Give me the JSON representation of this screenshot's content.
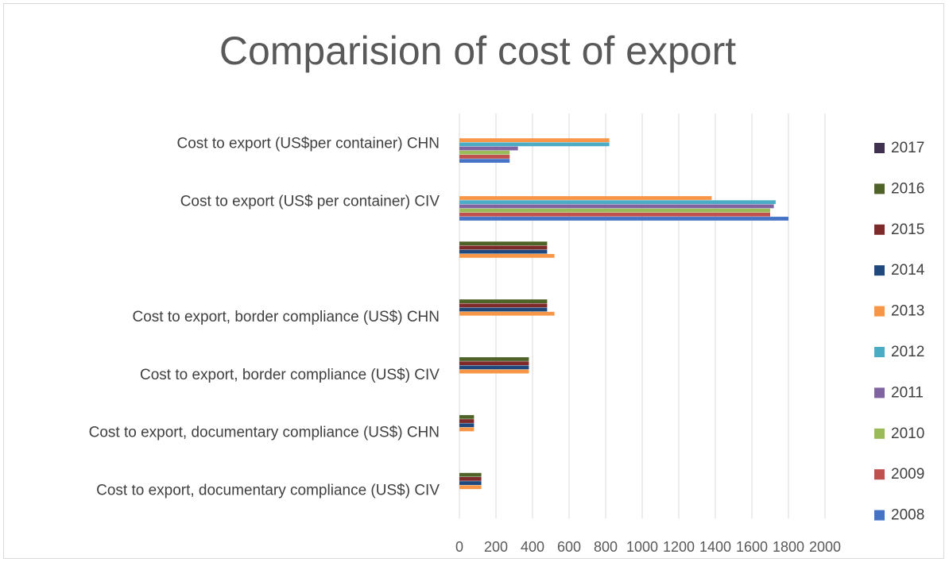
{
  "chart_data": {
    "type": "bar",
    "orientation": "horizontal",
    "title": "Comparision of cost of export",
    "xlabel": "",
    "ylabel": "",
    "xlim": [
      0,
      2000
    ],
    "x_ticks": [
      0,
      200,
      400,
      600,
      800,
      1000,
      1200,
      1400,
      1600,
      1800,
      2000
    ],
    "grid": "vertical",
    "legend_position": "right",
    "categories": [
      "Cost to export (US$per container) CHN",
      "Cost to export (US$ per container) CIV",
      "",
      "Cost to export, border compliance (US$) CHN",
      "Cost to export, border compliance (US$) CIV",
      "Cost to export, documentary compliance (US$) CHN",
      "Cost to export, documentary compliance (US$) CIV"
    ],
    "series": [
      {
        "name": "2008",
        "color": "#4472C4",
        "values": [
          275,
          1800,
          null,
          null,
          null,
          null,
          null
        ]
      },
      {
        "name": "2009",
        "color": "#C0504D",
        "values": [
          275,
          1700,
          null,
          null,
          null,
          null,
          null
        ]
      },
      {
        "name": "2010",
        "color": "#9BBB59",
        "values": [
          275,
          1700,
          null,
          null,
          null,
          null,
          null
        ]
      },
      {
        "name": "2011",
        "color": "#8064A2",
        "values": [
          320,
          1720,
          null,
          null,
          null,
          null,
          null
        ]
      },
      {
        "name": "2012",
        "color": "#4BACC6",
        "values": [
          820,
          1730,
          null,
          null,
          null,
          null,
          null
        ]
      },
      {
        "name": "2013",
        "color": "#F79646",
        "values": [
          820,
          1380,
          520,
          520,
          380,
          80,
          120
        ]
      },
      {
        "name": "2014",
        "color": "#1F497D",
        "values": [
          null,
          null,
          480,
          480,
          380,
          80,
          120
        ]
      },
      {
        "name": "2015",
        "color": "#7F2A2A",
        "values": [
          null,
          null,
          480,
          480,
          380,
          80,
          120
        ]
      },
      {
        "name": "2016",
        "color": "#4F6228",
        "values": [
          null,
          null,
          480,
          480,
          380,
          80,
          120
        ]
      },
      {
        "name": "2017",
        "color": "#403151",
        "values": [
          null,
          null,
          null,
          null,
          null,
          null,
          null
        ]
      }
    ],
    "legend_order": [
      "2017",
      "2016",
      "2015",
      "2014",
      "2013",
      "2012",
      "2011",
      "2010",
      "2009",
      "2008"
    ]
  }
}
